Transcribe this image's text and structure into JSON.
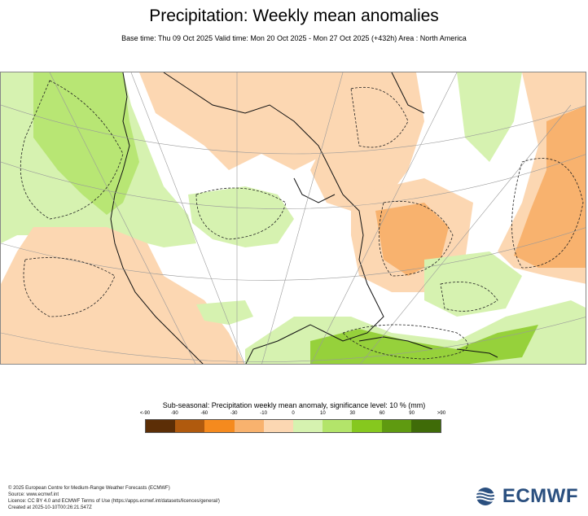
{
  "title": "Precipitation: Weekly mean anomalies",
  "subtitle": "Base time: Thu 09 Oct 2025 Valid time: Mon 20 Oct 2025 - Mon 27 Oct 2025 (+432h) Area : North America",
  "legend": {
    "title": "Sub-seasonal: Precipitation weekly mean anomaly, significance level: 10 % (mm)",
    "ticks": [
      "<-90",
      "-90",
      "-60",
      "-30",
      "-10",
      "0",
      "10",
      "30",
      "60",
      "90",
      ">90"
    ],
    "colors": [
      "#5c2e06",
      "#b05a0e",
      "#f58a1e",
      "#f8b26e",
      "#fcd7b2",
      "#d6f2b0",
      "#b3e46a",
      "#86c81e",
      "#5f9a10",
      "#3f6b08"
    ]
  },
  "footer": {
    "line1": "© 2025 European Centre for Medium-Range Weather Forecasts (ECMWF)",
    "line2": "Source: www.ecmwf.int",
    "line3": "Licence: CC BY 4.0 and ECMWF Terms of Use (https://apps.ecmwf.int/datasets/licences/general/)",
    "line4": "Created at 2025-10-10T00:26:21.547Z"
  },
  "logo": {
    "text": "ECMWF",
    "color": "#2a4f7f"
  }
}
